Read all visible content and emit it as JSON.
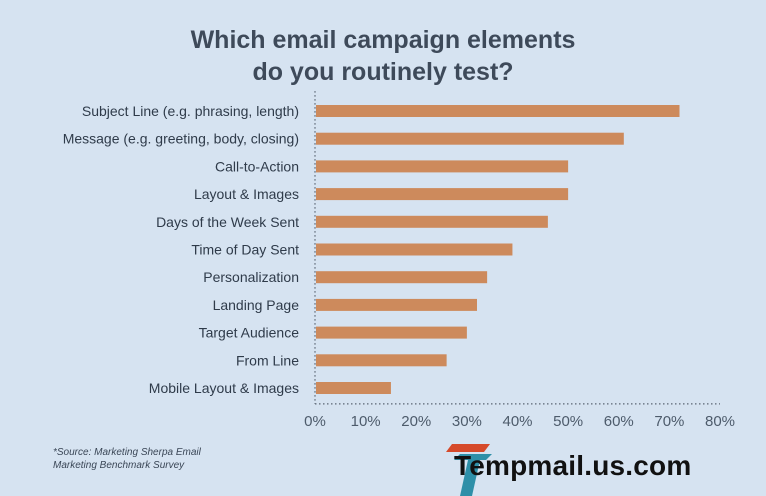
{
  "chart_data": {
    "type": "bar",
    "orientation": "horizontal",
    "title": "Which email campaign elements do you routinely test?",
    "title_lines": [
      "Which email campaign elements",
      "do you routinely test?"
    ],
    "categories": [
      "Subject Line (e.g. phrasing, length)",
      "Message (e.g. greeting, body, closing)",
      "Call-to-Action",
      "Layout & Images",
      "Days of the Week Sent",
      "Time of Day Sent",
      "Personalization",
      "Landing Page",
      "Target Audience",
      "From Line",
      "Mobile Layout & Images"
    ],
    "values": [
      72,
      61,
      50,
      50,
      46,
      39,
      34,
      32,
      30,
      26,
      15
    ],
    "xlim": [
      0,
      80
    ],
    "xticks": [
      "0%",
      "10%",
      "20%",
      "30%",
      "40%",
      "50%",
      "60%",
      "70%",
      "80%"
    ],
    "xlabel": "",
    "ylabel": "",
    "grid": false,
    "bar_color": "#cd8a5c"
  },
  "source_note": {
    "line1": "*Source: Marketing Sherpa Email",
    "line2": "Marketing Benchmark Survey"
  },
  "watermark": {
    "text": "Tempmail.us.com"
  },
  "colors": {
    "background": "#d6e3f1",
    "title": "#3e4a5a",
    "bar": "#cd8a5c",
    "axis": "#5a6573"
  }
}
